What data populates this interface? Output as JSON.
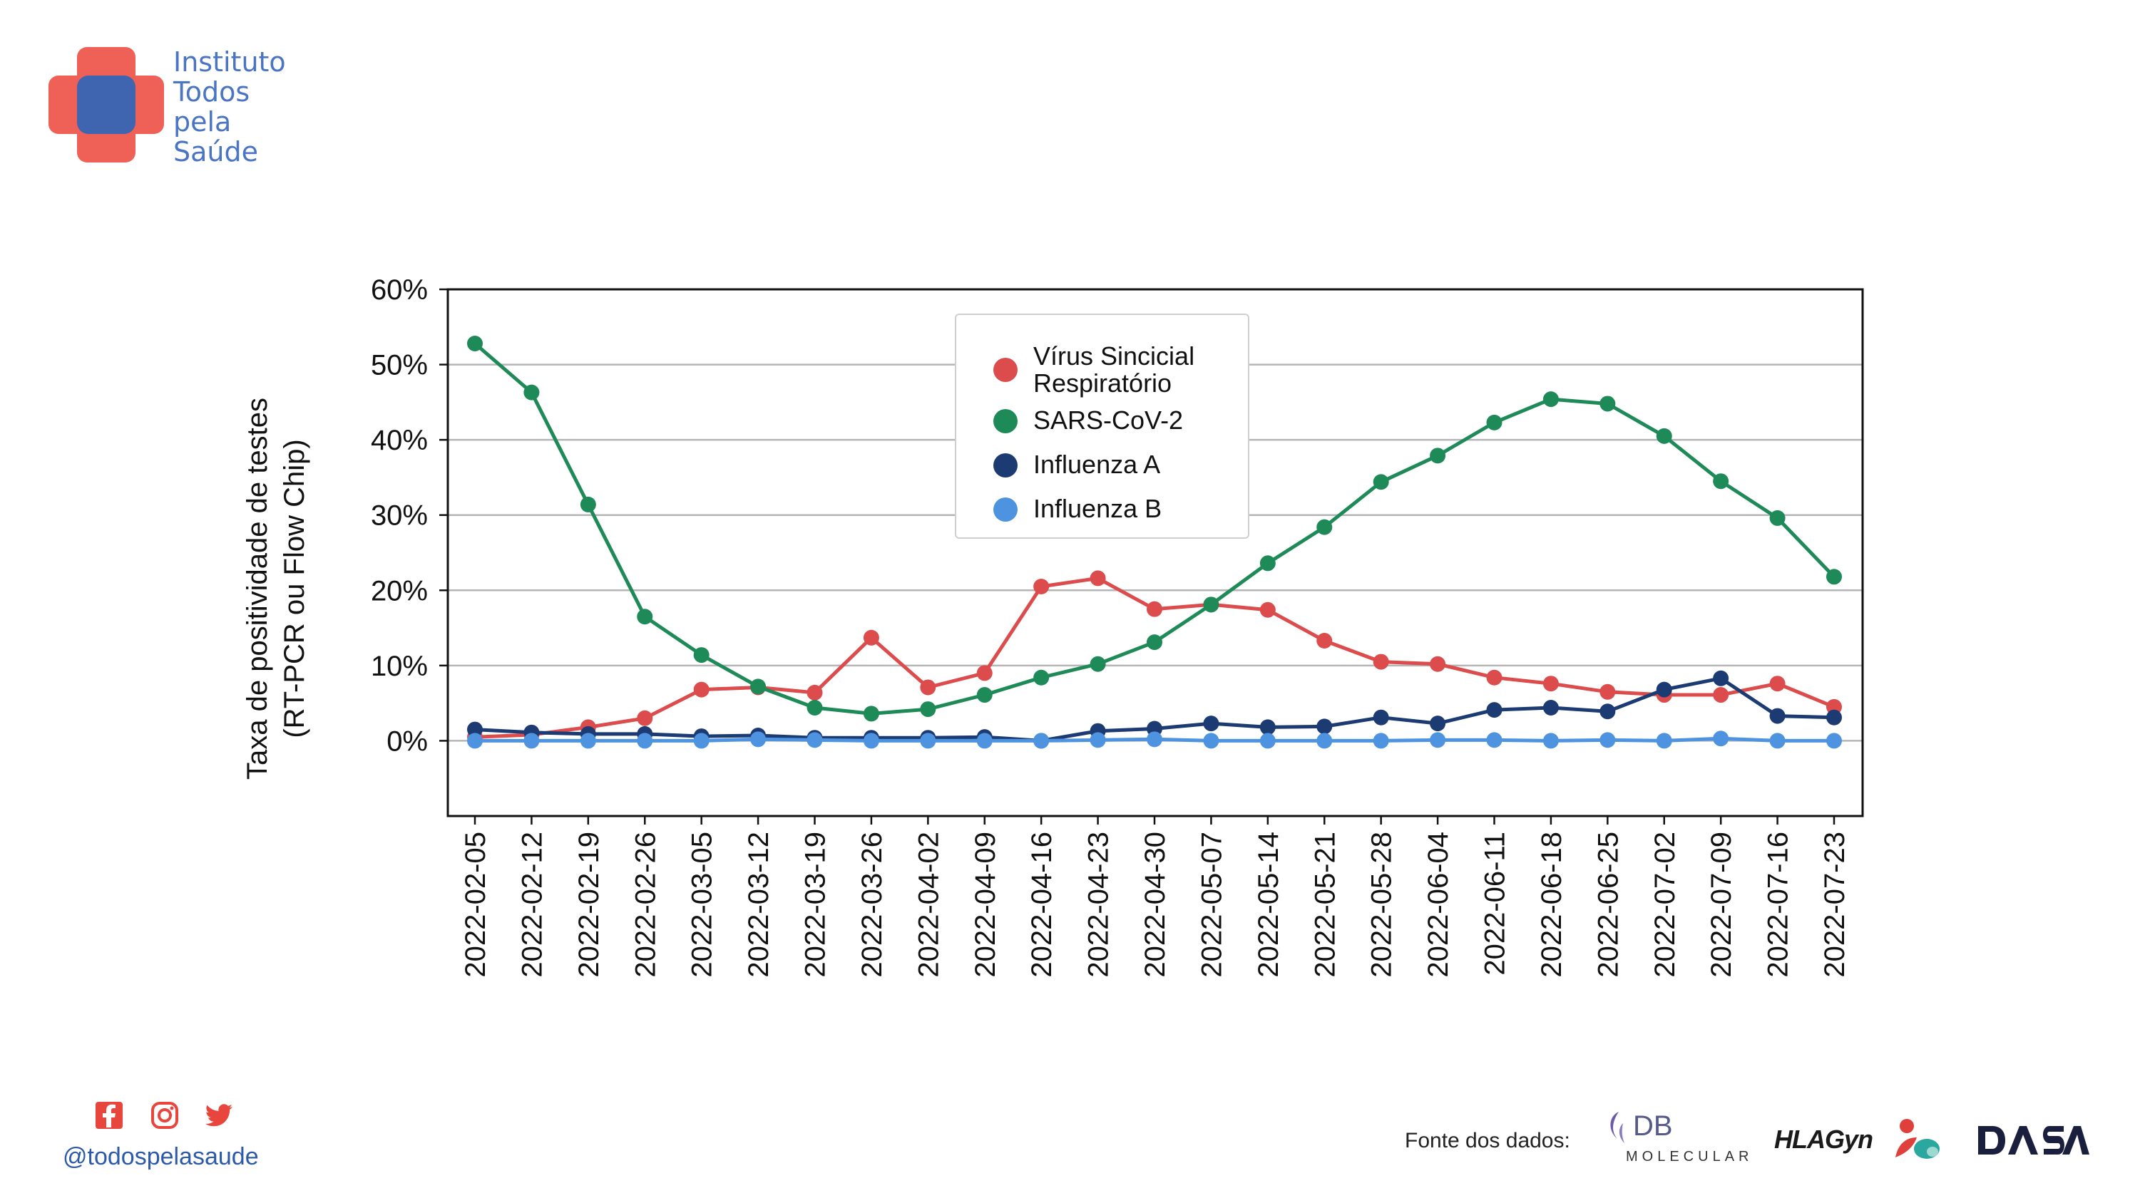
{
  "brand": {
    "name_lines": [
      "Instituto",
      "Todos",
      "pela",
      "Saúde"
    ],
    "colors": {
      "red": "#ef6156",
      "blue": "#3f64b0",
      "text": "#4a74c4"
    }
  },
  "chart_data": {
    "type": "line",
    "title": "",
    "ylabel_lines": [
      "Taxa de positividade de testes",
      "(RT-PCR ou Flow Chip)"
    ],
    "xlabel": "",
    "ylim": [
      -10,
      60
    ],
    "yticks": [
      0,
      10,
      20,
      30,
      40,
      50,
      60
    ],
    "ytick_labels": [
      "0%",
      "10%",
      "20%",
      "30%",
      "40%",
      "50%",
      "60%"
    ],
    "grid": "horizontal",
    "legend_position": "top-center",
    "categories": [
      "2022-02-05",
      "2022-02-12",
      "2022-02-19",
      "2022-02-26",
      "2022-03-05",
      "2022-03-12",
      "2022-03-19",
      "2022-03-26",
      "2022-04-02",
      "2022-04-09",
      "2022-04-16",
      "2022-04-23",
      "2022-04-30",
      "2022-05-07",
      "2022-05-14",
      "2022-05-21",
      "2022-05-28",
      "2022-06-04",
      "2022-06-11",
      "2022-06-18",
      "2022-06-25",
      "2022-07-02",
      "2022-07-09",
      "2022-07-16",
      "2022-07-23"
    ],
    "series": [
      {
        "name": "Vírus Sincicial Respiratório",
        "legend_lines": [
          "Vírus Sincicial",
          "Respiratório"
        ],
        "color": "#dc4c4c",
        "values": [
          0.5,
          0.8,
          1.8,
          3.0,
          6.8,
          7.1,
          6.4,
          13.7,
          7.1,
          9.0,
          20.5,
          21.6,
          17.5,
          18.1,
          17.4,
          13.3,
          10.5,
          10.2,
          8.4,
          7.6,
          6.5,
          6.1,
          6.1,
          7.6,
          4.5
        ]
      },
      {
        "name": "SARS-CoV-2",
        "legend_lines": [
          "SARS-CoV-2"
        ],
        "color": "#1e8a57",
        "values": [
          52.8,
          46.3,
          31.4,
          16.5,
          11.4,
          7.2,
          4.4,
          3.6,
          4.2,
          6.1,
          8.4,
          10.2,
          13.1,
          18.1,
          23.6,
          28.4,
          34.4,
          37.9,
          42.3,
          45.4,
          44.8,
          40.5,
          34.5,
          29.6,
          21.8
        ]
      },
      {
        "name": "Influenza A",
        "legend_lines": [
          "Influenza A"
        ],
        "color": "#1d3b73",
        "values": [
          1.5,
          1.1,
          0.9,
          0.9,
          0.6,
          0.7,
          0.4,
          0.4,
          0.4,
          0.5,
          0.0,
          1.3,
          1.6,
          2.3,
          1.8,
          1.9,
          3.1,
          2.3,
          4.1,
          4.4,
          3.9,
          6.8,
          8.3,
          3.3,
          3.1
        ]
      },
      {
        "name": "Influenza B",
        "legend_lines": [
          "Influenza B"
        ],
        "color": "#4e93e0",
        "values": [
          0.0,
          0.0,
          0.0,
          0.0,
          0.0,
          0.2,
          0.1,
          0.0,
          0.0,
          0.0,
          0.0,
          0.1,
          0.2,
          0.0,
          0.0,
          0.0,
          0.0,
          0.1,
          0.1,
          0.0,
          0.1,
          0.0,
          0.3,
          0.0,
          0.0
        ]
      }
    ]
  },
  "footer": {
    "social_icons": [
      "facebook-icon",
      "instagram-icon",
      "twitter-icon"
    ],
    "handle": "@todospelasaude",
    "source_label": "Fonte dos dados:",
    "sponsors": {
      "db": {
        "main": "DB",
        "sub": "MOLECULAR"
      },
      "hla": "HLAGyn",
      "dasa": "DASA"
    }
  }
}
